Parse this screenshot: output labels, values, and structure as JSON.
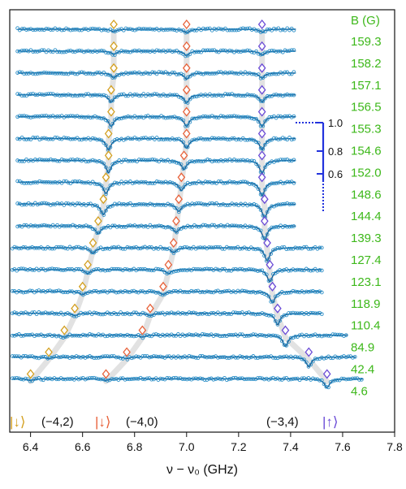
{
  "chart_data": {
    "type": "line",
    "xlabel": "ν − ν₀ (GHz)",
    "xlim": [
      6.32,
      7.8
    ],
    "x_ticks": [
      6.4,
      6.6,
      6.8,
      7.0,
      7.2,
      7.4,
      7.6,
      7.8
    ],
    "field_label": "B (G)",
    "field_values": [
      "159.3",
      "158.2",
      "157.1",
      "156.5",
      "155.3",
      "154.6",
      "152.0",
      "148.6",
      "144.4",
      "139.3",
      "127.4",
      "123.1",
      "118.9",
      "110.4",
      "84.9",
      "42.4",
      "4.6"
    ],
    "spectra": [
      {
        "B": 159.3,
        "x_range": [
          6.35,
          7.42
        ],
        "peaks": [
          {
            "x": 6.72,
            "depth": 0.15
          },
          {
            "x": 7.0,
            "depth": 0.22
          },
          {
            "x": 7.29,
            "depth": 0.18
          }
        ]
      },
      {
        "B": 158.2,
        "x_range": [
          6.35,
          7.42
        ],
        "peaks": [
          {
            "x": 6.72,
            "depth": 0.2
          },
          {
            "x": 7.0,
            "depth": 0.28
          },
          {
            "x": 7.29,
            "depth": 0.25
          }
        ]
      },
      {
        "B": 157.1,
        "x_range": [
          6.35,
          7.42
        ],
        "peaks": [
          {
            "x": 6.72,
            "depth": 0.3
          },
          {
            "x": 7.0,
            "depth": 0.38
          },
          {
            "x": 7.29,
            "depth": 0.32
          }
        ]
      },
      {
        "B": 156.5,
        "x_range": [
          6.35,
          7.42
        ],
        "peaks": [
          {
            "x": 6.71,
            "depth": 0.45
          },
          {
            "x": 7.0,
            "depth": 0.5
          },
          {
            "x": 7.29,
            "depth": 0.45
          }
        ]
      },
      {
        "B": 155.3,
        "x_range": [
          6.35,
          7.42
        ],
        "peaks": [
          {
            "x": 6.71,
            "depth": 0.6
          },
          {
            "x": 7.0,
            "depth": 0.6
          },
          {
            "x": 7.29,
            "depth": 0.6
          }
        ]
      },
      {
        "B": 154.6,
        "x_range": [
          6.35,
          7.42
        ],
        "peaks": [
          {
            "x": 6.7,
            "depth": 0.7
          },
          {
            "x": 7.0,
            "depth": 0.6
          },
          {
            "x": 7.29,
            "depth": 0.7
          }
        ]
      },
      {
        "B": 152.0,
        "x_range": [
          6.35,
          7.42
        ],
        "peaks": [
          {
            "x": 6.7,
            "depth": 0.75
          },
          {
            "x": 6.99,
            "depth": 0.55
          },
          {
            "x": 7.29,
            "depth": 0.8
          }
        ]
      },
      {
        "B": 148.6,
        "x_range": [
          6.35,
          7.42
        ],
        "peaks": [
          {
            "x": 6.69,
            "depth": 0.7
          },
          {
            "x": 6.98,
            "depth": 0.5
          },
          {
            "x": 7.29,
            "depth": 0.85
          }
        ]
      },
      {
        "B": 144.4,
        "x_range": [
          6.35,
          7.42
        ],
        "peaks": [
          {
            "x": 6.68,
            "depth": 0.65
          },
          {
            "x": 6.97,
            "depth": 0.45
          },
          {
            "x": 7.3,
            "depth": 0.85
          }
        ]
      },
      {
        "B": 139.3,
        "x_range": [
          6.35,
          7.42
        ],
        "peaks": [
          {
            "x": 6.66,
            "depth": 0.5
          },
          {
            "x": 6.96,
            "depth": 0.4
          },
          {
            "x": 7.3,
            "depth": 0.85
          }
        ]
      },
      {
        "B": 127.4,
        "x_range": [
          6.33,
          7.52
        ],
        "peaks": [
          {
            "x": 6.64,
            "depth": 0.35
          },
          {
            "x": 6.95,
            "depth": 0.3
          },
          {
            "x": 7.31,
            "depth": 0.8
          }
        ]
      },
      {
        "B": 123.1,
        "x_range": [
          6.33,
          7.52
        ],
        "peaks": [
          {
            "x": 6.62,
            "depth": 0.25
          },
          {
            "x": 6.93,
            "depth": 0.25
          },
          {
            "x": 7.32,
            "depth": 0.75
          }
        ]
      },
      {
        "B": 118.9,
        "x_range": [
          6.33,
          7.52
        ],
        "peaks": [
          {
            "x": 6.6,
            "depth": 0.2
          },
          {
            "x": 6.91,
            "depth": 0.2
          },
          {
            "x": 7.33,
            "depth": 0.7
          }
        ]
      },
      {
        "B": 110.4,
        "x_range": [
          6.33,
          7.52
        ],
        "peaks": [
          {
            "x": 6.57,
            "depth": 0.15
          },
          {
            "x": 6.86,
            "depth": 0.15
          },
          {
            "x": 7.35,
            "depth": 0.7
          }
        ]
      },
      {
        "B": 84.9,
        "x_range": [
          6.33,
          7.62
        ],
        "peaks": [
          {
            "x": 6.53,
            "depth": 0.12
          },
          {
            "x": 6.83,
            "depth": 0.12
          },
          {
            "x": 7.38,
            "depth": 0.7
          }
        ]
      },
      {
        "B": 42.4,
        "x_range": [
          6.33,
          7.65
        ],
        "peaks": [
          {
            "x": 6.47,
            "depth": 0.1
          },
          {
            "x": 6.77,
            "depth": 0.1
          },
          {
            "x": 7.47,
            "depth": 0.6
          }
        ]
      },
      {
        "B": 4.6,
        "x_range": [
          6.33,
          7.68
        ],
        "peaks": [
          {
            "x": 6.4,
            "depth": 0.1
          },
          {
            "x": 6.69,
            "depth": 0.1
          },
          {
            "x": 7.54,
            "depth": 0.55
          }
        ]
      }
    ],
    "scale_bar": {
      "ticks": [
        "1.0",
        "0.8",
        "0.6"
      ],
      "color": "#2233dd"
    },
    "transitions": [
      {
        "label": "(−4,2)",
        "ket_label": "|↓⟩",
        "color": "#d4a020"
      },
      {
        "label": "(−4,0)",
        "ket_label": "|↓⟩",
        "color": "#e8623a"
      },
      {
        "label": "(−3,4)",
        "ket_label": "|↑⟩",
        "color": "#6a4ad6"
      }
    ],
    "colors": {
      "data": "#2a8ec7",
      "fit": "#16558a",
      "field_labels": "#3db81a",
      "guide": "#e2e2e2"
    }
  }
}
